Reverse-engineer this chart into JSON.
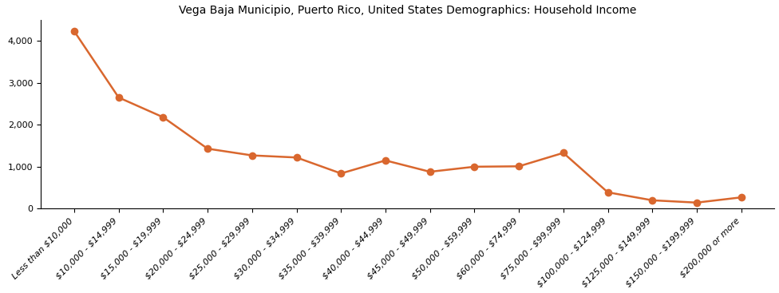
{
  "title": "Vega Baja Municipio, Puerto Rico, United States Demographics: Household Income",
  "categories": [
    "Less than $10,000",
    "$10,000 - $14,999",
    "$15,000 - $19,999",
    "$20,000 - $24,999",
    "$25,000 - $29,999",
    "$30,000 - $34,999",
    "$35,000 - $39,999",
    "$40,000 - $44,999",
    "$45,000 - $49,999",
    "$50,000 - $59,999",
    "$60,000 - $74,999",
    "$75,000 - $99,999",
    "$100,000 - $124,999",
    "$125,000 - $149,999",
    "$150,000 - $199,999",
    "$200,000 or more"
  ],
  "values": [
    4230,
    2650,
    2180,
    1430,
    1270,
    1220,
    840,
    1150,
    880,
    1000,
    1010,
    1330,
    390,
    200,
    145,
    270
  ],
  "line_color": "#d9672e",
  "marker_color": "#d9672e",
  "marker_size": 7,
  "line_width": 1.8,
  "ylim": [
    0,
    4500
  ],
  "yticks": [
    0,
    1000,
    2000,
    3000,
    4000
  ],
  "background_color": "#ffffff",
  "title_fontsize": 10,
  "tick_fontsize": 8.0
}
